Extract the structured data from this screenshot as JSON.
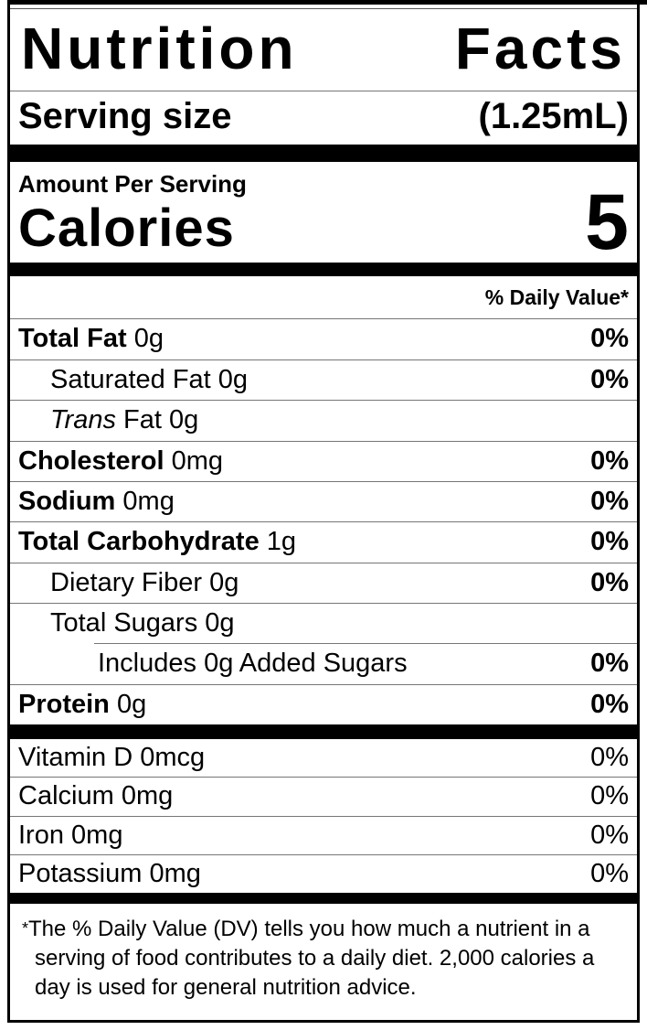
{
  "colors": {
    "ink": "#000000",
    "hairline": "#767676",
    "background": "#ffffff"
  },
  "label": {
    "title": {
      "first": "Nutrition",
      "last": "Facts"
    },
    "serving_size": {
      "label": "Serving size",
      "value": "(1.25mL)"
    },
    "amount_per_serving": "Amount Per Serving",
    "calories": {
      "label": "Calories",
      "value": "5"
    },
    "daily_value_header": "% Daily Value*",
    "nutrients": [
      {
        "name": "Total Fat",
        "amount": "0g",
        "dv": "0%"
      },
      {
        "name": "Saturated Fat",
        "amount": "0g",
        "dv": "0%"
      },
      {
        "name_italic": "Trans",
        "name_rest": "Fat",
        "amount": "0g",
        "dv": ""
      },
      {
        "name": "Cholesterol",
        "amount": "0mg",
        "dv": "0%"
      },
      {
        "name": "Sodium",
        "amount": "0mg",
        "dv": "0%"
      },
      {
        "name": "Total Carbohydrate",
        "amount": "1g",
        "dv": "0%"
      },
      {
        "name": "Dietary Fiber",
        "amount": "0g",
        "dv": "0%"
      },
      {
        "name": "Total Sugars",
        "amount": "0g",
        "dv": ""
      },
      {
        "name": "Includes 0g Added Sugars",
        "amount": "",
        "dv": "0%"
      },
      {
        "name": "Protein",
        "amount": "0g",
        "dv": "0%"
      }
    ],
    "micronutrients": [
      {
        "name": "Vitamin D",
        "amount": "0mcg",
        "dv": "0%"
      },
      {
        "name": "Calcium",
        "amount": "0mg",
        "dv": "0%"
      },
      {
        "name": "Iron",
        "amount": "0mg",
        "dv": "0%"
      },
      {
        "name": "Potassium",
        "amount": "0mg",
        "dv": "0%"
      }
    ],
    "footnote": {
      "marker": "*",
      "text": "The % Daily Value (DV) tells you how much a nutrient in a serving of food contributes to a daily diet. 2,000 calories a day is used for general nutrition advice."
    }
  }
}
